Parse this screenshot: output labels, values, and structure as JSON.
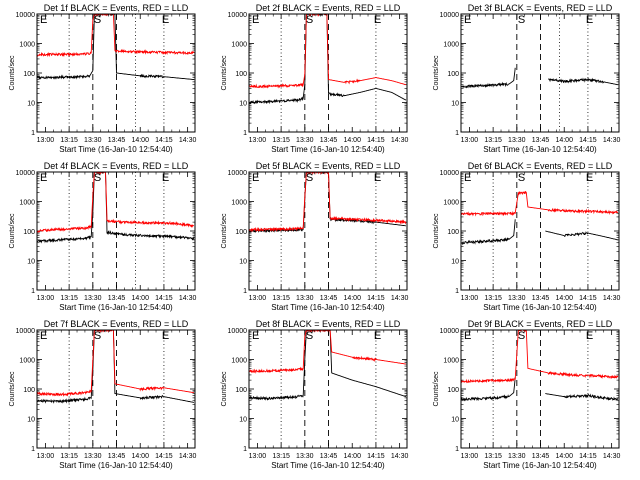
{
  "figure": {
    "y_ticks": [
      "1",
      "10",
      "100",
      "1000",
      "10000"
    ],
    "x_ticks": [
      "13:00",
      "13:15",
      "13:30",
      "13:45",
      "14:00",
      "14:15",
      "14:30"
    ],
    "markers": [
      "E",
      "S",
      "E"
    ],
    "series_colors": {
      "events": "#000000",
      "lld": "#ff0000"
    }
  },
  "chart_data": [
    {
      "type": "line",
      "title": "Det 1f BLACK = Events, RED = LLD",
      "xlabel": "Start Time (16-Jan-10 12:54:40)",
      "ylabel": "Counts/sec",
      "y_scale": "log",
      "ylim": [
        1,
        10000
      ],
      "xlim": [
        "12:54:40",
        "14:34:40"
      ],
      "vlines_dotted": [
        "13:15",
        "13:57",
        "14:15"
      ],
      "vlines_dashed": [
        "13:30",
        "13:45"
      ],
      "series": [
        {
          "color": "#000000",
          "x": [
            "12:55",
            "13:10",
            "13:25",
            "13:28",
            "13:30",
            "13:31",
            "13:44",
            "13:45",
            "14:00",
            "14:15",
            "14:34"
          ],
          "y": [
            70,
            72,
            75,
            80,
            120,
            10000,
            10000,
            100,
            80,
            75,
            60
          ]
        },
        {
          "color": "#ff0000",
          "x": [
            "12:55",
            "13:10",
            "13:28",
            "13:29",
            "13:30",
            "13:31",
            "13:43",
            "13:44",
            "14:00",
            "14:15",
            "14:34"
          ],
          "y": [
            420,
            430,
            450,
            480,
            6000,
            10000,
            10000,
            550,
            520,
            500,
            480
          ]
        }
      ]
    },
    {
      "type": "line",
      "title": "Det 2f BLACK = Events, RED = LLD",
      "xlabel": "Start Time (16-Jan-10 12:54:40)",
      "ylabel": "Counts/sec",
      "y_scale": "log",
      "ylim": [
        1,
        10000
      ],
      "xlim": [
        "12:54:40",
        "14:34:40"
      ],
      "vlines_dotted": [
        "13:15",
        "14:15"
      ],
      "vlines_dashed": [
        "13:30",
        "13:45"
      ],
      "series": [
        {
          "color": "#000000",
          "x": [
            "12:55",
            "13:10",
            "13:25",
            "13:29",
            "13:30",
            "13:31",
            "13:44",
            "13:45",
            "13:55",
            "14:05",
            "14:15",
            "14:25",
            "14:34"
          ],
          "y": [
            10,
            11,
            12,
            14,
            40,
            10000,
            10000,
            20,
            17,
            22,
            30,
            22,
            12
          ]
        },
        {
          "color": "#ff0000",
          "x": [
            "12:55",
            "13:10",
            "13:25",
            "13:29",
            "13:30",
            "13:31",
            "13:44",
            "13:45",
            "13:55",
            "14:05",
            "14:15",
            "14:25",
            "14:34"
          ],
          "y": [
            35,
            36,
            38,
            40,
            90,
            10000,
            10000,
            60,
            48,
            55,
            70,
            55,
            40
          ]
        }
      ]
    },
    {
      "type": "line",
      "title": "Det 3f BLACK = Events, RED = LLD",
      "xlabel": "Start Time (16-Jan-10 12:54:40)",
      "ylabel": "Counts/sec",
      "y_scale": "log",
      "ylim": [
        1,
        10000
      ],
      "xlim": [
        "12:54:40",
        "14:34:40"
      ],
      "vlines_dotted": [
        "13:57",
        "14:15"
      ],
      "vlines_dashed": [
        "13:30",
        "13:45"
      ],
      "series": [
        {
          "color": "#000000",
          "x": [
            "12:55",
            "13:10",
            "13:25",
            "13:28",
            "13:29"
          ],
          "y": [
            35,
            38,
            42,
            55,
            150
          ]
        },
        {
          "color": "#000000",
          "x": [
            "13:50",
            "14:00",
            "14:15",
            "14:25",
            "14:34"
          ],
          "y": [
            60,
            52,
            60,
            50,
            40
          ]
        }
      ]
    },
    {
      "type": "line",
      "title": "Det 4f BLACK = Events, RED = LLD",
      "xlabel": "Start Time (16-Jan-10 12:54:40)",
      "ylabel": "Counts/sec",
      "y_scale": "log",
      "ylim": [
        1,
        10000
      ],
      "xlim": [
        "12:54:40",
        "14:34:40"
      ],
      "vlines_dotted": [
        "13:15",
        "13:57",
        "14:15"
      ],
      "vlines_dashed": [
        "13:30",
        "13:45"
      ],
      "series": [
        {
          "color": "#000000",
          "x": [
            "12:55",
            "13:10",
            "13:25",
            "13:29",
            "13:30",
            "13:31",
            "13:38",
            "13:39",
            "13:50",
            "14:05",
            "14:20",
            "14:34"
          ],
          "y": [
            45,
            50,
            55,
            65,
            400,
            10000,
            10000,
            90,
            75,
            70,
            65,
            55
          ]
        },
        {
          "color": "#ff0000",
          "x": [
            "12:55",
            "13:10",
            "13:25",
            "13:29",
            "13:30",
            "13:31",
            "13:38",
            "13:39",
            "13:50",
            "14:05",
            "14:20",
            "14:34"
          ],
          "y": [
            100,
            115,
            125,
            140,
            1500,
            10000,
            10000,
            220,
            200,
            190,
            185,
            150
          ]
        }
      ]
    },
    {
      "type": "line",
      "title": "Det 5f BLACK = Events, RED = LLD",
      "xlabel": "Start Time (16-Jan-10 12:54:40)",
      "ylabel": "Counts/sec",
      "y_scale": "log",
      "ylim": [
        1,
        10000
      ],
      "xlim": [
        "12:54:40",
        "14:34:40"
      ],
      "vlines_dotted": [
        "13:15",
        "14:15"
      ],
      "vlines_dashed": [
        "13:30",
        "13:45"
      ],
      "series": [
        {
          "color": "#000000",
          "x": [
            "12:55",
            "13:10",
            "13:25",
            "13:29",
            "13:30",
            "13:31",
            "13:45",
            "13:46",
            "14:00",
            "14:15",
            "14:34"
          ],
          "y": [
            100,
            105,
            110,
            115,
            1200,
            10000,
            10000,
            250,
            230,
            200,
            150
          ]
        },
        {
          "color": "#ff0000",
          "x": [
            "12:55",
            "13:10",
            "13:25",
            "13:29",
            "13:30",
            "13:31",
            "13:45",
            "13:46",
            "14:00",
            "14:15",
            "14:34"
          ],
          "y": [
            110,
            115,
            120,
            125,
            1400,
            10000,
            10000,
            270,
            250,
            230,
            200
          ]
        }
      ]
    },
    {
      "type": "line",
      "title": "Det 6f BLACK = Events, RED = LLD",
      "xlabel": "Start Time (16-Jan-10 12:54:40)",
      "ylabel": "Counts/sec",
      "y_scale": "log",
      "ylim": [
        1,
        10000
      ],
      "xlim": [
        "12:54:40",
        "14:34:40"
      ],
      "vlines_dotted": [
        "13:15",
        "14:15"
      ],
      "vlines_dashed": [
        "13:30",
        "13:45"
      ],
      "series": [
        {
          "color": "#000000",
          "x": [
            "12:55",
            "13:10",
            "13:25",
            "13:28",
            "13:29"
          ],
          "y": [
            40,
            45,
            52,
            70,
            250
          ]
        },
        {
          "color": "#000000",
          "x": [
            "13:48",
            "14:00",
            "14:15",
            "14:25",
            "14:34"
          ],
          "y": [
            100,
            70,
            85,
            65,
            50
          ]
        },
        {
          "color": "#ff0000",
          "x": [
            "12:55",
            "13:10",
            "13:25",
            "13:29",
            "13:30",
            "13:31",
            "13:36",
            "13:37",
            "13:50",
            "14:05",
            "14:20",
            "14:34"
          ],
          "y": [
            380,
            385,
            390,
            400,
            900,
            2000,
            2000,
            650,
            520,
            480,
            460,
            420
          ]
        }
      ]
    },
    {
      "type": "line",
      "title": "Det 7f BLACK = Events, RED = LLD",
      "xlabel": "Start Time (16-Jan-10 12:54:40)",
      "ylabel": "Counts/sec",
      "y_scale": "log",
      "ylim": [
        1,
        10000
      ],
      "xlim": [
        "12:54:40",
        "14:34:40"
      ],
      "vlines_dotted": [
        "13:15",
        "14:15"
      ],
      "vlines_dashed": [
        "13:30",
        "13:45"
      ],
      "series": [
        {
          "color": "#000000",
          "x": [
            "12:55",
            "13:10",
            "13:25",
            "13:29",
            "13:30",
            "13:31",
            "13:43",
            "13:44",
            "14:00",
            "14:15",
            "14:34"
          ],
          "y": [
            40,
            38,
            45,
            50,
            400,
            10000,
            10000,
            70,
            50,
            55,
            35
          ]
        },
        {
          "color": "#ff0000",
          "x": [
            "12:55",
            "13:10",
            "13:25",
            "13:29",
            "13:30",
            "13:31",
            "13:43",
            "13:44",
            "14:00",
            "14:15",
            "14:34"
          ],
          "y": [
            70,
            65,
            75,
            85,
            900,
            10000,
            10000,
            150,
            100,
            110,
            75
          ]
        }
      ]
    },
    {
      "type": "line",
      "title": "Det 8f BLACK = Events, RED = LLD",
      "xlabel": "Start Time (16-Jan-10 12:54:40)",
      "ylabel": "Counts/sec",
      "y_scale": "log",
      "ylim": [
        1,
        10000
      ],
      "xlim": [
        "12:54:40",
        "14:34:40"
      ],
      "vlines_dotted": [
        "13:15",
        "14:15"
      ],
      "vlines_dashed": [
        "13:30",
        "13:45"
      ],
      "series": [
        {
          "color": "#000000",
          "x": [
            "12:55",
            "13:10",
            "13:25",
            "13:29",
            "13:30",
            "13:31",
            "13:46",
            "13:47",
            "14:00",
            "14:15",
            "14:34"
          ],
          "y": [
            50,
            48,
            55,
            60,
            1000,
            10000,
            10000,
            350,
            200,
            120,
            55
          ]
        },
        {
          "color": "#ff0000",
          "x": [
            "12:55",
            "13:10",
            "13:25",
            "13:29",
            "13:30",
            "13:31",
            "13:46",
            "13:47",
            "14:00",
            "14:15",
            "14:34"
          ],
          "y": [
            400,
            420,
            450,
            480,
            6000,
            10000,
            10000,
            1800,
            1200,
            1000,
            700
          ]
        }
      ]
    },
    {
      "type": "line",
      "title": "Det 9f BLACK = Events, RED = LLD",
      "xlabel": "Start Time (16-Jan-10 12:54:40)",
      "ylabel": "Counts/sec",
      "y_scale": "log",
      "ylim": [
        1,
        10000
      ],
      "xlim": [
        "12:54:40",
        "14:34:40"
      ],
      "vlines_dotted": [
        "13:15",
        "14:15"
      ],
      "vlines_dashed": [
        "13:30",
        "13:45"
      ],
      "series": [
        {
          "color": "#000000",
          "x": [
            "12:55",
            "13:10",
            "13:25",
            "13:28",
            "13:29"
          ],
          "y": [
            45,
            48,
            55,
            75,
            250
          ]
        },
        {
          "color": "#000000",
          "x": [
            "13:48",
            "14:00",
            "14:15",
            "14:25",
            "14:34"
          ],
          "y": [
            70,
            55,
            60,
            50,
            45
          ]
        },
        {
          "color": "#ff0000",
          "x": [
            "12:55",
            "13:10",
            "13:25",
            "13:29",
            "13:30",
            "13:31",
            "13:36",
            "13:37",
            "13:50",
            "14:05",
            "14:20",
            "14:34"
          ],
          "y": [
            180,
            190,
            200,
            220,
            1500,
            10000,
            10000,
            500,
            350,
            300,
            280,
            250
          ]
        }
      ]
    }
  ]
}
